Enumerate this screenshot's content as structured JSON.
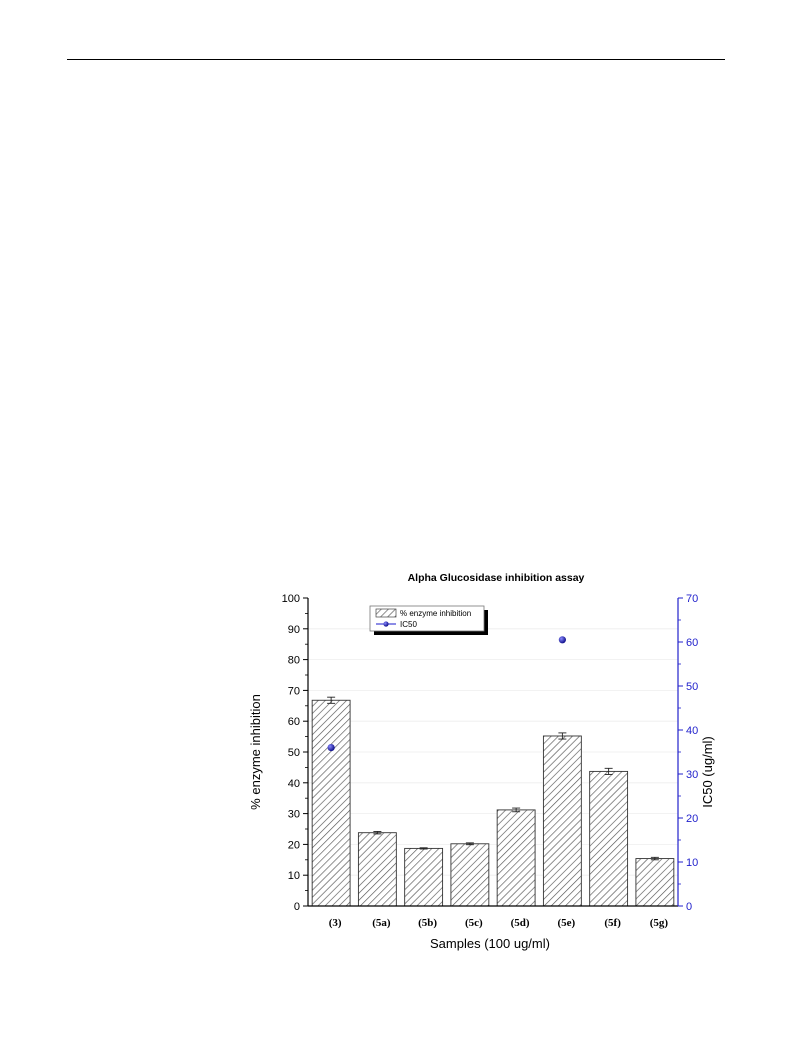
{
  "chart_data": {
    "type": "bar",
    "title": "Alpha Glucosidase inhibition assay",
    "xlabel": "Samples (100 ug/ml)",
    "ylabel": "% enzyme inhibition",
    "y2label": "IC50 (ug/ml)",
    "ylim": [
      0,
      100
    ],
    "y2lim": [
      0,
      70
    ],
    "yticks": [
      "0",
      "10",
      "20",
      "30",
      "40",
      "50",
      "60",
      "70",
      "80",
      "90",
      "100"
    ],
    "y2ticks": [
      "0",
      "10",
      "20",
      "30",
      "40",
      "50",
      "60",
      "70"
    ],
    "categories": [
      "(3)",
      "(5a)",
      "(5b)",
      "(5c)",
      "(5d)",
      "(5e)",
      "(5f)",
      "(5g)"
    ],
    "series": [
      {
        "name": "% enzyme inhibition",
        "axis": "left",
        "kind": "bar",
        "values": [
          66.8,
          23.8,
          18.7,
          20.2,
          31.2,
          55.2,
          43.7,
          15.4
        ],
        "errors": [
          1.0,
          0.4,
          0.2,
          0.3,
          0.6,
          1.0,
          1.0,
          0.4
        ]
      },
      {
        "name": "IC50",
        "axis": "right",
        "kind": "scatter",
        "values": [
          36.0,
          null,
          null,
          null,
          null,
          60.5,
          null,
          null
        ]
      }
    ],
    "legend": "top-center",
    "grid": true,
    "colors": {
      "bar_hatch": "#555555",
      "ic50_marker": "#1a1acc",
      "right_axis": "#2222cc"
    }
  }
}
